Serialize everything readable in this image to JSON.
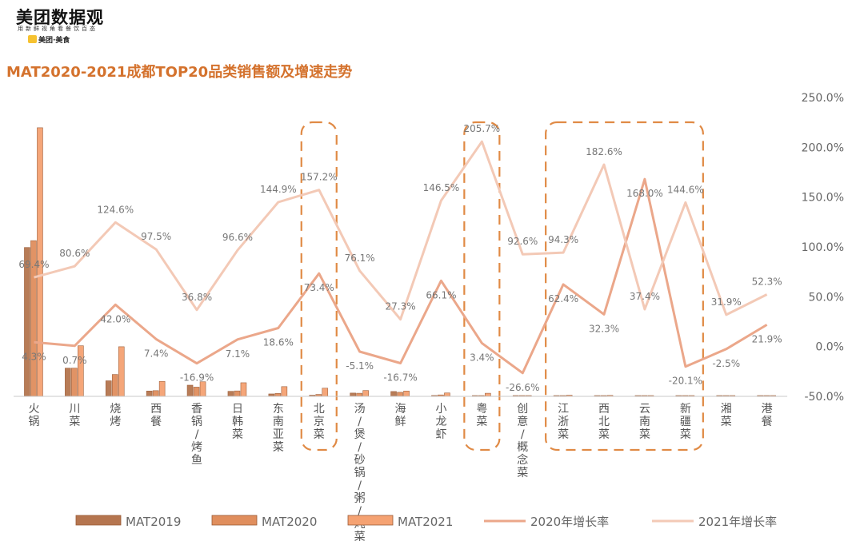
{
  "header": {
    "logo_title": "美团数据观",
    "logo_subtitle": "用新鲜视角看餐饮百态",
    "brand": "美团·美食",
    "badge": "美团"
  },
  "colors": {
    "mat2019": "#b5754f",
    "mat2020": "#e08e5d",
    "mat2021": "#f5a272",
    "line2020": "#eba78a",
    "line2021": "#f3c9b6",
    "title": "#d4722d",
    "box": "#e08a45"
  },
  "chart_data": {
    "type": "bar+line",
    "title": "MAT2020-2021成都TOP20品类销售额及增速走势",
    "categories": [
      "火锅",
      "川菜",
      "烧烤",
      "西餐",
      "香锅/烤鱼",
      "日韩菜",
      "东南亚菜",
      "北京菜",
      "汤/煲/砂锅/粥/炖菜",
      "海鲜",
      "小龙虾",
      "粤菜",
      "创意/概念菜",
      "江浙菜",
      "西北菜",
      "云南菜",
      "新疆菜",
      "湘菜",
      "港餐"
    ],
    "bar_series": [
      {
        "name": "MAT2019",
        "values": [
          153,
          29,
          16,
          5.5,
          11.5,
          5.2,
          2.5,
          1.2,
          3.4,
          5.0,
          0.9,
          0.6,
          0.3,
          0.4,
          0.3,
          0.1,
          0.2,
          0.3,
          0.2
        ]
      },
      {
        "name": "MAT2020",
        "values": [
          160,
          29,
          22.5,
          5.9,
          9.5,
          5.6,
          3.0,
          2.0,
          3.2,
          4.2,
          1.5,
          0.6,
          0.2,
          0.6,
          0.4,
          0.3,
          0.2,
          0.3,
          0.3
        ]
      },
      {
        "name": "MAT2021",
        "values": [
          276,
          52,
          51,
          15.4,
          15.0,
          14.0,
          10.0,
          8.4,
          6.0,
          5.5,
          3.5,
          3.2,
          0.4,
          1.2,
          1.0,
          0.8,
          0.5,
          0.3,
          0.4
        ]
      }
    ],
    "bar_ylim": [
      0,
      280
    ],
    "line_series": [
      {
        "name": "2020年增长率",
        "values": [
          4.3,
          0.7,
          42.0,
          7.4,
          -16.9,
          7.1,
          18.6,
          73.4,
          -5.1,
          -16.7,
          66.1,
          3.4,
          -26.6,
          62.4,
          32.3,
          168.0,
          -20.1,
          -2.5,
          21.9
        ],
        "labels": [
          "4.3%",
          "0.7%",
          "42.0%",
          "7.4%",
          "-16.9%",
          "7.1%",
          "18.6%",
          "73.4%",
          "-5.1%",
          "-16.7%",
          "66.1%",
          "3.4%",
          "-26.6%",
          "62.4%",
          "32.3%",
          "168.0%",
          "-20.1%",
          "-2.5%",
          "21.9%"
        ]
      },
      {
        "name": "2021年增长率",
        "values": [
          69.4,
          80.6,
          124.6,
          97.5,
          36.8,
          96.6,
          144.9,
          157.2,
          76.1,
          27.3,
          146.5,
          205.7,
          92.6,
          94.3,
          182.6,
          37.4,
          144.6,
          31.9,
          52.3
        ],
        "labels": [
          "69.4%",
          "80.6%",
          "124.6%",
          "97.5%",
          "36.8%",
          "96.6%",
          "144.9%",
          "157.2%",
          "76.1%",
          "27.3%",
          "146.5%",
          "205.7%",
          "92.6%",
          "94.3%",
          "182.6%",
          "37.4%",
          "144.6%",
          "31.9%",
          "52.3%"
        ]
      }
    ],
    "y2_ticks": [
      "250.0%",
      "200.0%",
      "150.0%",
      "100.0%",
      "50.0%",
      "0.0%",
      "-50.0%"
    ],
    "y2lim": [
      -50,
      250
    ],
    "highlighted_categories": [
      "北京菜",
      "粤菜",
      "江浙菜",
      "西北菜",
      "云南菜",
      "新疆菜"
    ],
    "legend": [
      "MAT2019",
      "MAT2020",
      "MAT2021",
      "2020年增长率",
      "2021年增长率"
    ],
    "legend_position": "bottom"
  }
}
